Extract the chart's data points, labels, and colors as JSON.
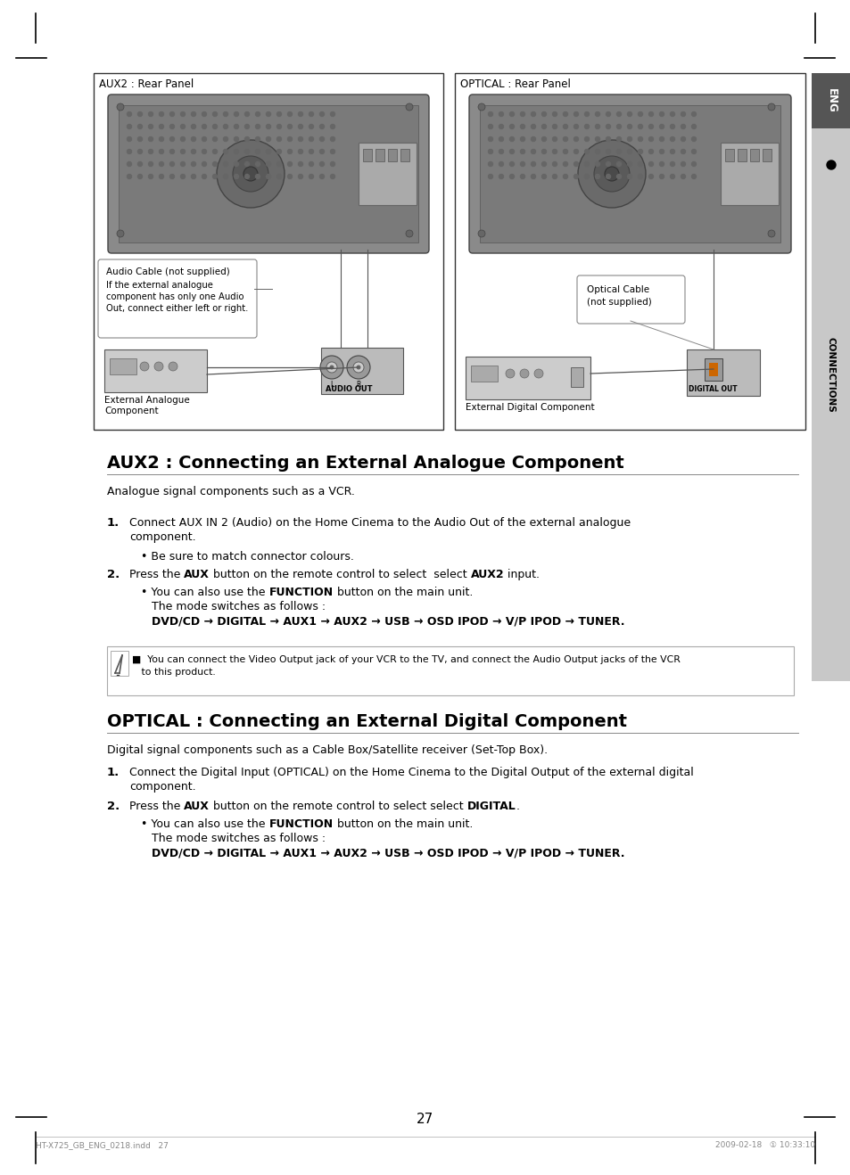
{
  "page_bg": "#ffffff",
  "title_aux2": "AUX2 : Connecting an External Analogue Component",
  "title_optical": "OPTICAL : Connecting an External Digital Component",
  "subtitle_aux2": "Analogue signal components such as a VCR.",
  "subtitle_optical": "Digital signal components such as a Cable Box/Satellite receiver (Set-Top Box).",
  "aux2_panel_label": "AUX2 : Rear Panel",
  "optical_panel_label": "OPTICAL : Rear Panel",
  "audio_cable_label": "Audio Cable (not supplied)",
  "audio_cable_note1": "If the external analogue",
  "audio_cable_note2": "component has only one Audio",
  "audio_cable_note3": "Out, connect either left or right.",
  "optical_cable_line1": "Optical Cable",
  "optical_cable_line2": "(not supplied)",
  "ext_analogue_line1": "External Analogue",
  "ext_analogue_line2": "Component",
  "ext_digital_label": "External Digital Component",
  "audio_out_label": "AUDIO OUT",
  "eng_label": "ENG",
  "connections_label": "CONNECTIONS",
  "page_number": "27",
  "footer_left": "HT-X725_GB_ENG_0218.indd   27",
  "footer_right": "2009-02-18   ① 10:33:10",
  "note_line1": "■  You can connect the Video Output jack of your VCR to the TV, and connect the Audio Output jacks of the VCR",
  "note_line2": "   to this product.",
  "step1_aux2_a": "Connect AUX IN 2 (Audio) on the Home Cinema to the Audio Out of the external analogue",
  "step1_aux2_b": "component.",
  "step1_opt_a": "Connect the Digital Input (OPTICAL) on the Home Cinema to the Digital Output of the external digital",
  "step1_opt_b": "component.",
  "bullet_colours": "Be sure to match connector colours.",
  "also_use": "You can also use the ",
  "function_word": "FUNCTION",
  "button_main": " button on the main unit.",
  "mode_follows": "The mode switches as follows :",
  "dvd_line": "DVD/CD → DIGITAL → AUX1 → AUX2 → USB → OSD IPOD → V/P IPOD → TUNER.",
  "press_aux": "Press the ",
  "aux_word": "AUX",
  "btn_remote": " button on the remote control to select ",
  "aux2_word": "AUX2",
  "input_word": " input.",
  "digital_word": "DIGITAL",
  "period": "."
}
